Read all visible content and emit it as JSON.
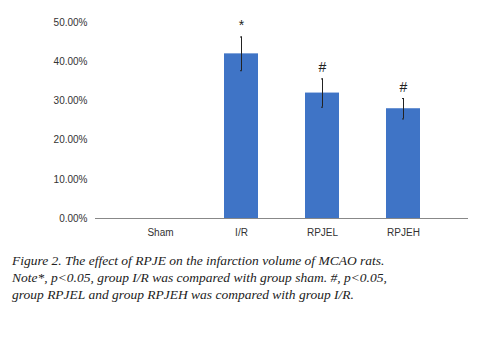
{
  "chart_data": {
    "type": "bar",
    "categories": [
      "Sham",
      "I/R",
      "RPJEL",
      "RPJEH"
    ],
    "values": [
      0,
      42,
      32,
      28
    ],
    "errors": [
      null,
      4.3,
      3.6,
      2.6
    ],
    "significance": [
      null,
      "*",
      "#",
      "#"
    ],
    "color": "#3f74c6",
    "ylim": [
      0,
      50
    ],
    "yticks": [
      {
        "value": 0,
        "label": "0.00%"
      },
      {
        "value": 10,
        "label": "10.00%"
      },
      {
        "value": 20,
        "label": "20.00%"
      },
      {
        "value": 30,
        "label": "30.00%"
      },
      {
        "value": 40,
        "label": "40.00%"
      },
      {
        "value": 50,
        "label": "50.00%"
      }
    ],
    "grid": false,
    "caption": [
      "Figure 2. The effect of RPJE on the infarction volume of MCAO rats.",
      "Note*, p<0.05, group I/R was compared with group sham. #, p<0.05,",
      "group RPJEL and group RPJEH was compared with group I/R."
    ]
  }
}
